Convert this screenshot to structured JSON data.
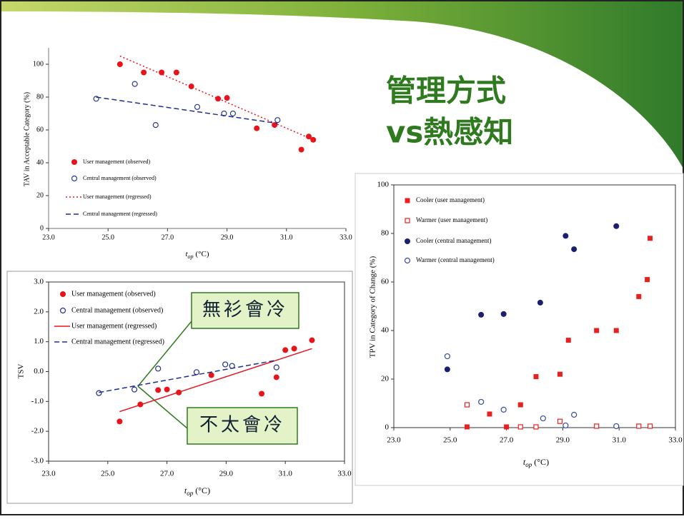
{
  "slide_title": [
    "管理方式",
    "vs熱感知"
  ],
  "chart_data": [
    {
      "type": "scatter",
      "ylabel": "TAV in Acceptable Category (%)",
      "xlabel_main": "t",
      "xlabel_sub": "op",
      "xlabel_unit": "(°C)",
      "xlim": [
        23,
        33
      ],
      "ylim": [
        0,
        110
      ],
      "xticks": [
        {
          "value": 23,
          "label": "23.0"
        },
        {
          "value": 25,
          "label": "25.0"
        },
        {
          "value": 27,
          "label": "27.0"
        },
        {
          "value": 29,
          "label": "29.0"
        },
        {
          "value": 31,
          "label": "31.0"
        },
        {
          "value": 33,
          "label": "33.0"
        }
      ],
      "yticks": [
        0,
        20,
        40,
        60,
        80,
        100
      ],
      "series": [
        {
          "name": "User management (observed)",
          "color": "#e8141c",
          "style": "filled-circle",
          "x": [
            25.4,
            26.2,
            26.8,
            27.3,
            27.8,
            28.7,
            29.0,
            30.0,
            30.6,
            31.5,
            31.75,
            31.9
          ],
          "values": [
            100,
            95,
            95,
            95,
            86.5,
            79,
            79.5,
            61,
            63,
            48,
            56,
            54
          ]
        },
        {
          "name": "Central management (observed)",
          "color": "#2a3a8f",
          "style": "open-circle",
          "x": [
            24.6,
            25.9,
            26.6,
            28.0,
            28.9,
            29.2,
            30.7
          ],
          "values": [
            79,
            88,
            63,
            74,
            70,
            70,
            66
          ]
        },
        {
          "name": "User management (regressed)",
          "color": "#e8141c",
          "style": "dotted-line",
          "x": [
            25.4,
            31.9
          ],
          "values": [
            105,
            54
          ]
        },
        {
          "name": "Central management (regressed)",
          "color": "#1f2f8f",
          "style": "dashed-line",
          "x": [
            24.6,
            30.7
          ],
          "values": [
            80,
            64
          ]
        }
      ]
    },
    {
      "type": "scatter",
      "ylabel": "TSV",
      "xlabel_main": "t",
      "xlabel_sub": "op",
      "xlabel_unit": "(°C)",
      "xlim": [
        23,
        33
      ],
      "ylim": [
        -3,
        3
      ],
      "xticks": [
        {
          "value": 23,
          "label": "23.0"
        },
        {
          "value": 25,
          "label": "25.0"
        },
        {
          "value": 27,
          "label": "27.0"
        },
        {
          "value": 29,
          "label": "29.0"
        },
        {
          "value": 31,
          "label": "31.0"
        },
        {
          "value": 33,
          "label": "33.0"
        }
      ],
      "yticks": [
        {
          "value": -3,
          "label": "-3.0"
        },
        {
          "value": -2,
          "label": "-2.0"
        },
        {
          "value": -1,
          "label": "-1.0"
        },
        {
          "value": 0,
          "label": "0.0"
        },
        {
          "value": 1,
          "label": "1.0"
        },
        {
          "value": 2,
          "label": "2.0"
        },
        {
          "value": 3,
          "label": "3.0"
        }
      ],
      "annotations": [
        "無衫會冷",
        "不太會冷"
      ],
      "series": [
        {
          "name": "User management (observed)",
          "color": "#e8141c",
          "style": "filled-circle",
          "x": [
            25.4,
            26.1,
            26.7,
            27.0,
            27.4,
            28.5,
            30.2,
            30.7,
            31.0,
            31.3,
            31.9
          ],
          "values": [
            -1.67,
            -1.1,
            -0.62,
            -0.6,
            -0.7,
            -0.12,
            -0.74,
            -0.19,
            0.72,
            0.77,
            1.05
          ]
        },
        {
          "name": "Central management (observed)",
          "color": "#1f2f8f",
          "style": "open-circle",
          "x": [
            24.7,
            25.9,
            26.7,
            28.0,
            28.97,
            29.2,
            30.7
          ],
          "values": [
            -0.72,
            -0.6,
            0.1,
            -0.02,
            0.24,
            0.19,
            0.14
          ]
        },
        {
          "name": "User management (regressed)",
          "color": "#e8141c",
          "style": "solid-line",
          "x": [
            25.4,
            31.9
          ],
          "values": [
            -1.34,
            0.77
          ]
        },
        {
          "name": "Central management (regressed)",
          "color": "#1f2f8f",
          "style": "dashed-line",
          "x": [
            24.7,
            30.7
          ],
          "values": [
            -0.7,
            0.38
          ]
        }
      ]
    },
    {
      "type": "scatter",
      "ylabel": "TPV in Category of Change (%)",
      "xlabel_main": "t",
      "xlabel_sub": "op",
      "xlabel_unit": "(°C)",
      "xlim": [
        23,
        33
      ],
      "ylim": [
        0,
        100
      ],
      "xticks": [
        {
          "value": 23,
          "label": "23.0"
        },
        {
          "value": 25,
          "label": "25.0"
        },
        {
          "value": 27,
          "label": "27.0"
        },
        {
          "value": 29,
          "label": "29.0"
        },
        {
          "value": 31,
          "label": "31.0"
        },
        {
          "value": 33,
          "label": "33.0"
        }
      ],
      "yticks": [
        0,
        20,
        40,
        60,
        80,
        100
      ],
      "series": [
        {
          "name": "Cooler (user management)",
          "color": "#e82020",
          "style": "filled-square",
          "x": [
            25.6,
            26.4,
            27.0,
            27.5,
            28.05,
            28.9,
            29.2,
            30.2,
            30.9,
            31.7,
            32.0,
            32.1
          ],
          "values": [
            0.3,
            5.6,
            0.3,
            9.4,
            21,
            22,
            36,
            40,
            40,
            54,
            61,
            78
          ]
        },
        {
          "name": "Warmer (user management)",
          "color": "#e82020",
          "style": "open-square",
          "x": [
            25.6,
            27.5,
            28.05,
            28.9,
            30.2,
            31.7,
            32.1
          ],
          "values": [
            9.4,
            0.3,
            0.3,
            2.6,
            0.6,
            0.6,
            0.6
          ]
        },
        {
          "name": "Cooler (central management)",
          "color": "#1a1f6e",
          "style": "filled-circle",
          "x": [
            24.9,
            26.1,
            26.9,
            28.2,
            29.1,
            29.4,
            30.9
          ],
          "values": [
            24,
            46.5,
            46.8,
            51.5,
            79,
            73.5,
            83
          ]
        },
        {
          "name": "Warmer (central management)",
          "color": "#3a4aa0",
          "style": "open-circle",
          "x": [
            24.9,
            26.1,
            26.9,
            28.3,
            29.1,
            29.4,
            30.9
          ],
          "values": [
            29.4,
            10.6,
            7.4,
            3.8,
            0.9,
            5.3,
            0.6
          ]
        }
      ]
    }
  ]
}
